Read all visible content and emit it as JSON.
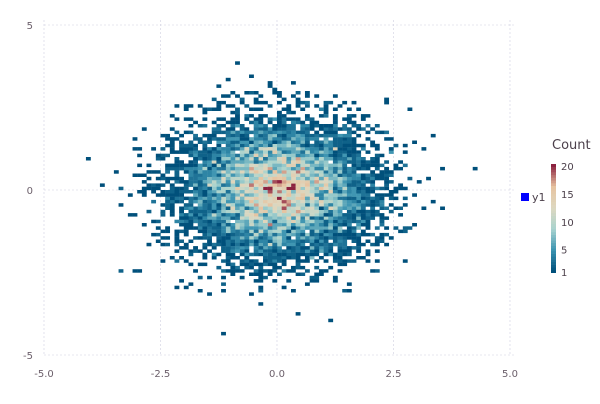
{
  "chart_data": {
    "type": "heatmap",
    "title": "",
    "xlabel": "",
    "ylabel": "",
    "xlim": [
      -5,
      5
    ],
    "ylim": [
      -5,
      5
    ],
    "xticks": [
      -5.0,
      -2.5,
      0.0,
      2.5,
      5.0
    ],
    "xtick_labels": [
      "-5.0",
      "-2.5",
      "0.0",
      "2.5",
      "5.0"
    ],
    "yticks": [
      5,
      0,
      -5
    ],
    "ytick_labels": [
      "5",
      "0",
      "-5"
    ],
    "grid": true,
    "bin_size": [
      0.1,
      0.1
    ],
    "distribution": "2D standard normal sample, centered at (0, 0)",
    "max_count": 20,
    "peak_bins": [
      {
        "x": -0.2,
        "y": 0.0,
        "count": 20
      },
      {
        "x": 0.2,
        "y": 0.0,
        "count": 20
      }
    ],
    "colorbar": {
      "title": "Count",
      "ticks": [
        1,
        5,
        10,
        15,
        20
      ],
      "tick_labels": [
        "1",
        "5",
        "10",
        "15",
        "20"
      ],
      "range": [
        1,
        20
      ],
      "stops": [
        "#00507b",
        "#3a93b0",
        "#a9d3cf",
        "#ddd8c0",
        "#e7c3a0",
        "#8c2240"
      ]
    },
    "legend": {
      "entries": [
        {
          "name": "y1",
          "color": "#0000ff"
        }
      ],
      "placement": "right"
    }
  }
}
